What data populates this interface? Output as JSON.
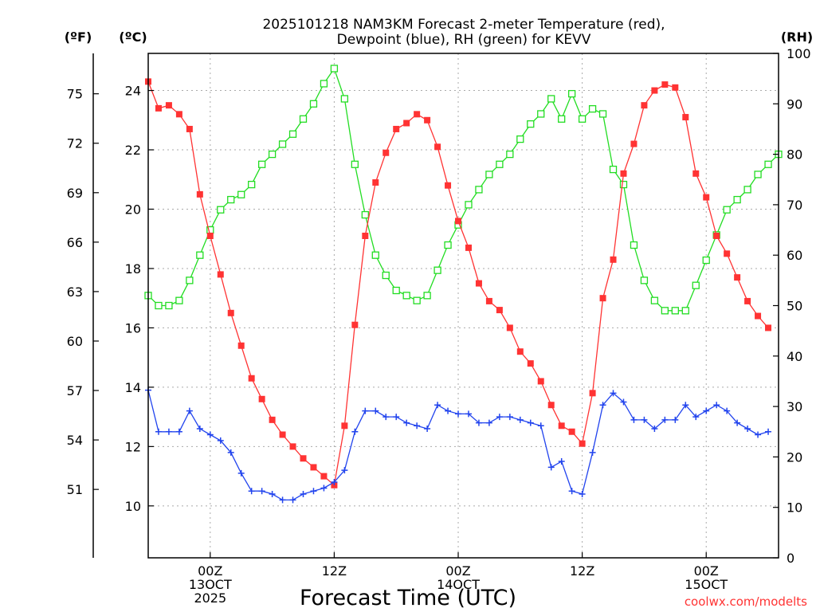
{
  "chart_data": {
    "type": "line",
    "title": "2025101218 NAM3KM Forecast 2-meter Temperature (red),",
    "title_line2": "Dewpoint (blue), RH (green) for KEVV",
    "xlabel": "Forecast Time (UTC)",
    "unit_left_outer": "(ºF)",
    "unit_left_inner": "(ºC)",
    "unit_right": "(RH)",
    "watermark": "coolwx.com/modelts",
    "x_range_hours": [
      0,
      61
    ],
    "celsius_range": [
      8.25,
      25.25
    ],
    "celsius_ticks": [
      "10",
      "12",
      "14",
      "16",
      "18",
      "20",
      "22",
      "24"
    ],
    "fahrenheit_ticks": [
      "51",
      "54",
      "57",
      "60",
      "63",
      "66",
      "69",
      "72",
      "75"
    ],
    "rh_range": [
      0,
      100
    ],
    "rh_ticks": [
      "0",
      "10",
      "20",
      "30",
      "40",
      "50",
      "60",
      "70",
      "80",
      "90",
      "100"
    ],
    "x_ticks": [
      {
        "hour": 6,
        "line1": "00Z",
        "line2": "13OCT",
        "line3": "2025"
      },
      {
        "hour": 18,
        "line1": "12Z",
        "line2": "",
        "line3": ""
      },
      {
        "hour": 30,
        "line1": "00Z",
        "line2": "14OCT",
        "line3": ""
      },
      {
        "hour": 42,
        "line1": "12Z",
        "line2": "",
        "line3": ""
      },
      {
        "hour": 54,
        "line1": "00Z",
        "line2": "15OCT",
        "line3": ""
      }
    ],
    "colors": {
      "temperature": "#ff3333",
      "dewpoint": "#2244ee",
      "rh": "#22dd22",
      "grid": "#aaaaaa"
    },
    "series": [
      {
        "name": "Temperature",
        "unit": "C",
        "values": [
          24.3,
          23.4,
          23.5,
          23.2,
          22.7,
          20.5,
          19.1,
          17.8,
          16.5,
          15.4,
          14.3,
          13.6,
          12.9,
          12.4,
          12.0,
          11.6,
          11.3,
          11.0,
          10.7,
          12.7,
          16.1,
          19.1,
          20.9,
          21.9,
          22.7,
          22.9,
          23.2,
          23.0,
          22.1,
          20.8,
          19.6,
          18.7,
          17.5,
          16.9,
          16.6,
          16.0,
          15.2,
          14.8,
          14.2,
          13.4,
          12.7,
          12.5,
          12.1,
          13.8,
          17.0,
          18.3,
          21.2,
          22.2,
          23.5,
          24.0,
          24.2,
          24.1,
          23.1,
          21.2,
          20.4,
          19.1,
          18.5,
          17.7,
          16.9,
          16.4,
          16.0
        ]
      },
      {
        "name": "Dewpoint",
        "unit": "C",
        "values": [
          13.9,
          12.5,
          12.5,
          12.5,
          13.2,
          12.6,
          12.4,
          12.2,
          11.8,
          11.1,
          10.5,
          10.5,
          10.4,
          10.2,
          10.2,
          10.4,
          10.5,
          10.6,
          10.8,
          11.2,
          12.5,
          13.2,
          13.2,
          13.0,
          13.0,
          12.8,
          12.7,
          12.6,
          13.4,
          13.2,
          13.1,
          13.1,
          12.8,
          12.8,
          13.0,
          13.0,
          12.9,
          12.8,
          12.7,
          11.3,
          11.5,
          10.5,
          10.4,
          11.8,
          13.4,
          13.8,
          13.5,
          12.9,
          12.9,
          12.6,
          12.9,
          12.9,
          13.4,
          13.0,
          13.2,
          13.4,
          13.2,
          12.8,
          12.6,
          12.4,
          12.5
        ]
      },
      {
        "name": "RH",
        "unit": "%",
        "values": [
          52,
          50,
          50,
          51,
          55,
          60,
          65,
          69,
          71,
          72,
          74,
          78,
          80,
          82,
          84,
          87,
          90,
          94,
          97,
          91,
          78,
          68,
          60,
          56,
          53,
          52,
          51,
          52,
          57,
          62,
          66,
          70,
          73,
          76,
          78,
          80,
          83,
          86,
          88,
          91,
          87,
          92,
          87,
          89,
          88,
          77,
          74,
          62,
          55,
          51,
          49,
          49,
          49,
          54,
          59,
          64,
          69,
          71,
          73,
          76,
          78,
          80
        ]
      }
    ]
  }
}
